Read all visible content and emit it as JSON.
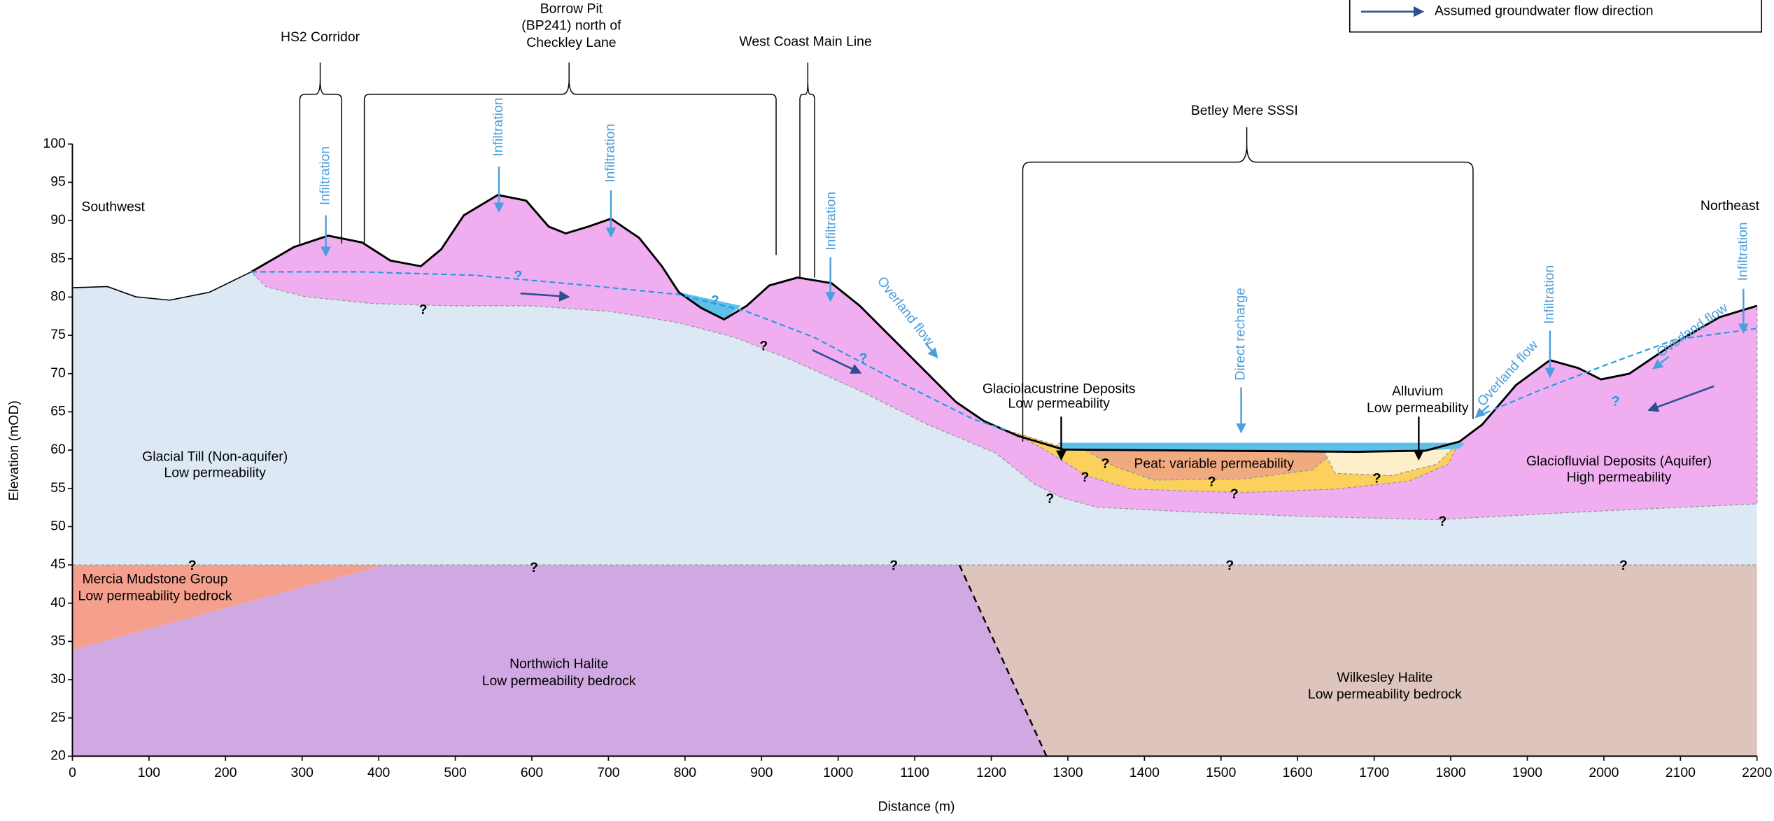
{
  "axes": {
    "x_label": "Distance (m)",
    "y_label": "Elevation (mOD)",
    "xlim": [
      0,
      2200
    ],
    "ylim": [
      20,
      100
    ],
    "xticks": [
      0,
      100,
      200,
      300,
      400,
      500,
      600,
      700,
      800,
      900,
      1000,
      1100,
      1200,
      1300,
      1400,
      1500,
      1600,
      1700,
      1800,
      1900,
      2000,
      2100,
      2200
    ],
    "yticks": [
      20,
      25,
      30,
      35,
      40,
      45,
      50,
      55,
      60,
      65,
      70,
      75,
      80,
      85,
      90,
      95,
      100
    ]
  },
  "legend": {
    "items": [
      "Assumed groundwater flow direction"
    ]
  },
  "directions": {
    "left": "Southwest",
    "right": "Northeast"
  },
  "features": {
    "hs2": [
      "HS2 Corridor"
    ],
    "borrow_pit": [
      "Borrow Pit",
      "(BP241) north of",
      "Checkley Lane"
    ],
    "wcml": [
      "West Coast Main Line"
    ],
    "betley": [
      "Betley Mere SSSI"
    ]
  },
  "units": {
    "glacial_till": [
      "Glacial Till (Non-aquifer)",
      "Low permeability"
    ],
    "mercia": [
      "Mercia Mudstone Group",
      "Low permeability bedrock"
    ],
    "northwich": [
      "Northwich Halite",
      "Low permeability bedrock"
    ],
    "wilkesley": [
      "Wilkesley Halite",
      "Low permeability bedrock"
    ],
    "glaciofluvial": [
      "Glaciofluvial Deposits (Aquifer)",
      "High permeability"
    ],
    "glaciolacustrine": [
      "Glaciolacustrine Deposits",
      "Low permeability"
    ],
    "alluvium": [
      "Alluvium",
      "Low permeability"
    ],
    "peat": [
      "Peat: variable permeability"
    ]
  },
  "processes": {
    "infiltration": [
      "Infiltration",
      "Infiltration",
      "Infiltration",
      "Infiltration",
      "Infiltration",
      "Infiltration"
    ],
    "direct_recharge": "Direct recharge",
    "overland_flow": [
      "Overland flow",
      "Overland flow",
      "Overland flow"
    ]
  },
  "uncertainty_marks": [
    "?",
    "?",
    "?",
    "?",
    "?",
    "?",
    "?",
    "?",
    "?",
    "?",
    "?",
    "?",
    "?",
    "?",
    "?",
    "?",
    "?",
    "?"
  ]
}
